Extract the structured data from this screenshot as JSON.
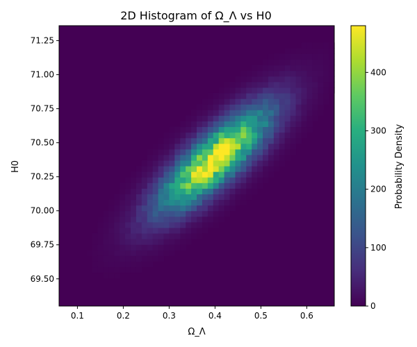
{
  "chart_data": {
    "type": "heatmap",
    "title": "2D Histogram of Ω_Λ vs H0",
    "xlabel": "Ω_Λ",
    "ylabel": "H0",
    "colorbar_label": "Probability Density",
    "colormap": "viridis",
    "xlim": [
      0.06,
      0.66
    ],
    "ylim": [
      69.3,
      71.36
    ],
    "x_ticks": [
      0.1,
      0.2,
      0.3,
      0.4,
      0.5,
      0.6
    ],
    "x_tick_labels": [
      "0.1",
      "0.2",
      "0.3",
      "0.4",
      "0.5",
      "0.6"
    ],
    "y_ticks": [
      69.5,
      69.75,
      70.0,
      70.25,
      70.5,
      70.75,
      71.0,
      71.25
    ],
    "y_tick_labels": [
      "69.50",
      "69.75",
      "70.00",
      "70.25",
      "70.50",
      "70.75",
      "71.00",
      "71.25"
    ],
    "colorbar_range": [
      0,
      480
    ],
    "colorbar_ticks": [
      0,
      100,
      200,
      300,
      400
    ],
    "colorbar_tick_labels": [
      "0",
      "100",
      "200",
      "300",
      "400"
    ],
    "bins": [
      50,
      50
    ],
    "distribution": {
      "peak_x": 0.4,
      "peak_y": 70.38,
      "peak_density": 470,
      "sigma_x": 0.083,
      "sigma_y": 0.26,
      "correlation": 0.82
    },
    "grid": false
  }
}
